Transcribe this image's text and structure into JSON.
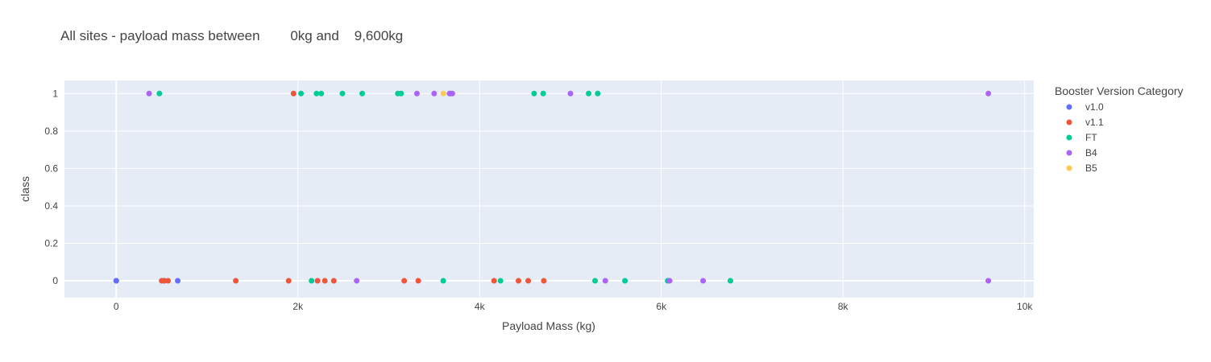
{
  "chart_data": {
    "type": "scatter",
    "title": "All sites - payload mass between        0kg and    9,600kg",
    "xlabel": "Payload Mass (kg)",
    "ylabel": "class",
    "xlim": [
      -570,
      10100
    ],
    "ylim": [
      -0.09,
      1.07
    ],
    "x_ticks": [
      0,
      2000,
      4000,
      6000,
      8000,
      10000
    ],
    "x_tick_labels": [
      "0",
      "2k",
      "4k",
      "6k",
      "8k",
      "10k"
    ],
    "y_ticks": [
      0,
      0.2,
      0.4,
      0.6,
      0.8,
      1
    ],
    "y_tick_labels": [
      "0",
      "0.2",
      "0.4",
      "0.6",
      "0.8",
      "1"
    ],
    "grid": true,
    "legend_title": "Booster Version Category",
    "legend_position": "right",
    "series": [
      {
        "name": "v1.0",
        "color": "#636efa",
        "points": [
          [
            0,
            0
          ],
          [
            0,
            0
          ],
          [
            525,
            0
          ],
          [
            677,
            0
          ]
        ]
      },
      {
        "name": "v1.1",
        "color": "#ef553b",
        "points": [
          [
            500,
            0
          ],
          [
            530,
            0
          ],
          [
            570,
            0
          ],
          [
            1316,
            0
          ],
          [
            1898,
            0
          ],
          [
            1952,
            1
          ],
          [
            2216,
            0
          ],
          [
            2296,
            0
          ],
          [
            2395,
            0
          ],
          [
            3170,
            0
          ],
          [
            3325,
            0
          ],
          [
            4159,
            0
          ],
          [
            4428,
            0
          ],
          [
            4535,
            0
          ],
          [
            4707,
            0
          ]
        ]
      },
      {
        "name": "FT",
        "color": "#00cc96",
        "points": [
          [
            475,
            1
          ],
          [
            2034,
            1
          ],
          [
            2150,
            0
          ],
          [
            2205,
            1
          ],
          [
            2257,
            1
          ],
          [
            2490,
            1
          ],
          [
            2708,
            1
          ],
          [
            3100,
            1
          ],
          [
            3136,
            1
          ],
          [
            3600,
            0
          ],
          [
            3681,
            1
          ],
          [
            4230,
            0
          ],
          [
            4600,
            1
          ],
          [
            4700,
            1
          ],
          [
            5200,
            1
          ],
          [
            5300,
            1
          ],
          [
            5271,
            0
          ],
          [
            5600,
            0
          ],
          [
            6070,
            0
          ],
          [
            6761,
            0
          ]
        ]
      },
      {
        "name": "B4",
        "color": "#ab63fa",
        "points": [
          [
            362,
            1
          ],
          [
            2647,
            0
          ],
          [
            3310,
            1
          ],
          [
            3500,
            1
          ],
          [
            3669,
            1
          ],
          [
            3700,
            1
          ],
          [
            5000,
            1
          ],
          [
            5384,
            0
          ],
          [
            6092,
            0
          ],
          [
            6460,
            0
          ],
          [
            9600,
            1
          ],
          [
            9600,
            0
          ]
        ]
      },
      {
        "name": "B5",
        "color": "#fecb52",
        "points": [
          [
            3600,
            1
          ]
        ]
      }
    ]
  }
}
